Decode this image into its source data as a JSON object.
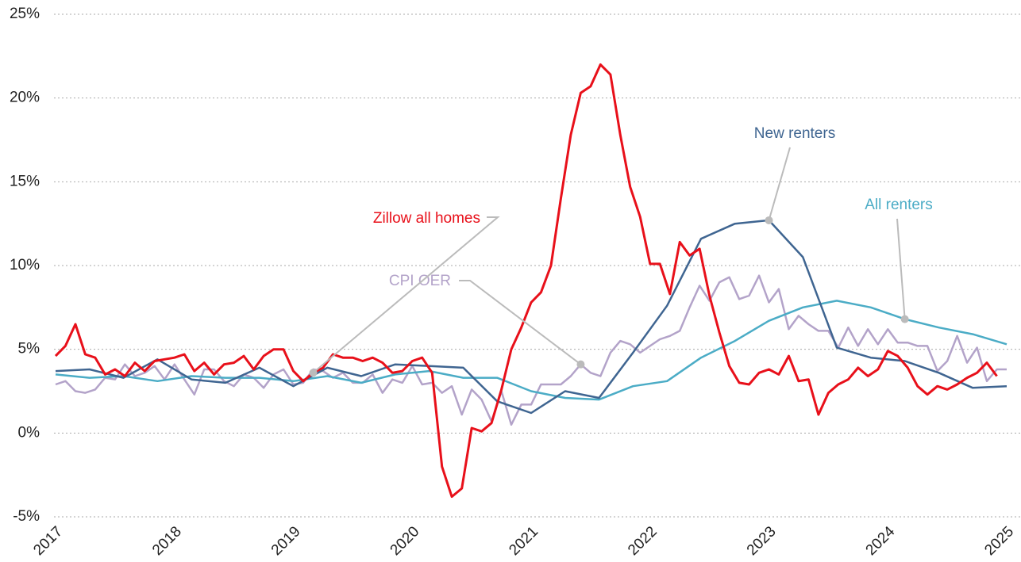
{
  "chart_data": {
    "type": "line",
    "ylim": [
      -5,
      25
    ],
    "yticks": [
      {
        "value": -5,
        "label": "-5%"
      },
      {
        "value": 0,
        "label": "0%"
      },
      {
        "value": 5,
        "label": "5%"
      },
      {
        "value": 10,
        "label": "10%"
      },
      {
        "value": 15,
        "label": "15%"
      },
      {
        "value": 20,
        "label": "20%"
      },
      {
        "value": 25,
        "label": "25%"
      }
    ],
    "xlim": [
      2017,
      2025
    ],
    "xticks": [
      2017,
      2018,
      2019,
      2020,
      2021,
      2022,
      2023,
      2024,
      2025
    ],
    "grid": true,
    "series": [
      {
        "name": "CPI OER",
        "color": "#b3a3c9",
        "x": [
          2017.0,
          2017.083,
          2017.167,
          2017.25,
          2017.333,
          2017.417,
          2017.5,
          2017.583,
          2017.667,
          2017.75,
          2017.833,
          2017.917,
          2018.0,
          2018.083,
          2018.167,
          2018.25,
          2018.333,
          2018.417,
          2018.5,
          2018.583,
          2018.667,
          2018.75,
          2018.833,
          2018.917,
          2019.0,
          2019.083,
          2019.167,
          2019.25,
          2019.333,
          2019.417,
          2019.5,
          2019.583,
          2019.667,
          2019.75,
          2019.833,
          2019.917,
          2020.0,
          2020.083,
          2020.167,
          2020.25,
          2020.333,
          2020.417,
          2020.5,
          2020.583,
          2020.667,
          2020.75,
          2020.833,
          2020.917,
          2021.0,
          2021.083,
          2021.167,
          2021.25,
          2021.333,
          2021.417,
          2021.5,
          2021.583,
          2021.667,
          2021.75,
          2021.833,
          2021.917,
          2022.0,
          2022.083,
          2022.167,
          2022.25,
          2022.333,
          2022.417,
          2022.5,
          2022.583,
          2022.667,
          2022.75,
          2022.833,
          2022.917,
          2023.0,
          2023.083,
          2023.167,
          2023.25,
          2023.333,
          2023.417,
          2023.5,
          2023.583,
          2023.667,
          2023.75,
          2023.833,
          2023.917,
          2024.0,
          2024.083,
          2024.167,
          2024.25,
          2024.333,
          2024.417,
          2024.5,
          2024.583,
          2024.667,
          2024.75,
          2024.833,
          2024.917,
          2025.0
        ],
        "values": [
          2.9,
          3.1,
          2.5,
          2.4,
          2.6,
          3.3,
          3.2,
          4.1,
          3.4,
          3.6,
          4.0,
          3.2,
          4.1,
          3.2,
          2.3,
          3.8,
          3.8,
          3.1,
          2.8,
          3.5,
          3.3,
          2.7,
          3.5,
          3.8,
          2.9,
          3.0,
          3.8,
          3.7,
          3.3,
          3.6,
          3.0,
          3.0,
          3.5,
          2.4,
          3.2,
          3.0,
          4.0,
          2.9,
          3.0,
          2.4,
          2.8,
          1.1,
          2.6,
          2.0,
          0.7,
          2.5,
          0.5,
          1.7,
          1.7,
          2.9,
          2.9,
          2.9,
          3.4,
          4.1,
          3.6,
          3.4,
          4.8,
          5.5,
          5.3,
          4.8,
          5.2,
          5.6,
          5.8,
          6.1,
          7.5,
          8.8,
          7.9,
          9.0,
          9.3,
          8.0,
          8.2,
          9.4,
          7.8,
          8.6,
          6.2,
          7.0,
          6.5,
          6.1,
          6.1,
          5.1,
          6.3,
          5.2,
          6.2,
          5.3,
          6.2,
          5.4,
          5.4,
          5.2,
          5.2,
          3.7,
          4.3,
          5.8,
          4.2,
          5.1,
          3.1,
          3.8,
          3.8
        ]
      },
      {
        "name": "All renters",
        "color": "#4bacc6",
        "x": [
          2017.0,
          2017.286,
          2017.571,
          2017.857,
          2018.143,
          2018.429,
          2018.714,
          2019.0,
          2019.286,
          2019.571,
          2019.857,
          2020.143,
          2020.429,
          2020.714,
          2021.0,
          2021.286,
          2021.571,
          2021.857,
          2022.143,
          2022.429,
          2022.714,
          2023.0,
          2023.286,
          2023.571,
          2023.857,
          2024.143,
          2024.429,
          2024.714,
          2025.0
        ],
        "values": [
          3.5,
          3.3,
          3.4,
          3.1,
          3.4,
          3.3,
          3.3,
          3.1,
          3.4,
          3.0,
          3.5,
          3.7,
          3.3,
          3.3,
          2.5,
          2.1,
          2.0,
          2.8,
          3.1,
          4.5,
          5.5,
          6.7,
          7.5,
          7.9,
          7.5,
          6.8,
          6.3,
          5.9,
          5.3
        ]
      },
      {
        "name": "New renters",
        "color": "#3f6591",
        "x": [
          2017.0,
          2017.286,
          2017.571,
          2017.857,
          2018.143,
          2018.429,
          2018.714,
          2019.0,
          2019.286,
          2019.571,
          2019.857,
          2020.143,
          2020.429,
          2020.714,
          2021.0,
          2021.286,
          2021.571,
          2021.857,
          2022.143,
          2022.429,
          2022.714,
          2023.0,
          2023.286,
          2023.571,
          2023.857,
          2024.143,
          2024.429,
          2024.714,
          2025.0
        ],
        "values": [
          3.7,
          3.8,
          3.3,
          4.4,
          3.2,
          3.0,
          3.9,
          2.8,
          3.9,
          3.4,
          4.1,
          4.0,
          3.9,
          1.9,
          1.2,
          2.5,
          2.1,
          4.8,
          7.6,
          11.6,
          12.5,
          12.7,
          10.5,
          5.1,
          4.5,
          4.3,
          3.6,
          2.7,
          2.8
        ]
      },
      {
        "name": "Zillow all homes",
        "color": "#e8101a",
        "x": [
          2017.0,
          2017.083,
          2017.167,
          2017.25,
          2017.333,
          2017.417,
          2017.5,
          2017.583,
          2017.667,
          2017.75,
          2017.833,
          2017.917,
          2018.0,
          2018.083,
          2018.167,
          2018.25,
          2018.333,
          2018.417,
          2018.5,
          2018.583,
          2018.667,
          2018.75,
          2018.833,
          2018.917,
          2019.0,
          2019.083,
          2019.167,
          2019.25,
          2019.333,
          2019.417,
          2019.5,
          2019.583,
          2019.667,
          2019.75,
          2019.833,
          2019.917,
          2020.0,
          2020.083,
          2020.167,
          2020.25,
          2020.333,
          2020.417,
          2020.5,
          2020.583,
          2020.667,
          2020.75,
          2020.833,
          2020.917,
          2021.0,
          2021.083,
          2021.167,
          2021.25,
          2021.333,
          2021.417,
          2021.5,
          2021.583,
          2021.667,
          2021.75,
          2021.833,
          2021.917,
          2022.0,
          2022.083,
          2022.167,
          2022.25,
          2022.333,
          2022.417,
          2022.5,
          2022.583,
          2022.667,
          2022.75,
          2022.833,
          2022.917,
          2023.0,
          2023.083,
          2023.167,
          2023.25,
          2023.333,
          2023.417,
          2023.5,
          2023.583,
          2023.667,
          2023.75,
          2023.833,
          2023.917,
          2024.0,
          2024.083,
          2024.167,
          2024.25,
          2024.333,
          2024.417,
          2024.5,
          2024.583,
          2024.667,
          2024.75,
          2024.833,
          2024.917
        ],
        "values": [
          4.6,
          5.2,
          6.5,
          4.7,
          4.5,
          3.5,
          3.8,
          3.4,
          4.2,
          3.7,
          4.3,
          4.4,
          4.5,
          4.7,
          3.7,
          4.2,
          3.5,
          4.1,
          4.2,
          4.6,
          3.8,
          4.6,
          5.0,
          5.0,
          3.7,
          3.1,
          3.6,
          3.9,
          4.7,
          4.5,
          4.5,
          4.3,
          4.5,
          4.2,
          3.6,
          3.7,
          4.3,
          4.5,
          3.6,
          -2.0,
          -3.8,
          -3.3,
          0.3,
          0.1,
          0.6,
          2.6,
          5.0,
          6.3,
          7.8,
          8.4,
          10.0,
          14.0,
          17.8,
          20.3,
          20.7,
          22.0,
          21.4,
          17.8,
          14.7,
          12.9,
          10.1,
          10.1,
          8.3,
          11.4,
          10.6,
          11.0,
          8.2,
          6.0,
          4.0,
          3.0,
          2.9,
          3.6,
          3.8,
          3.5,
          4.6,
          3.1,
          3.2,
          1.1,
          2.4,
          2.9,
          3.2,
          3.9,
          3.4,
          3.8,
          4.9,
          4.6,
          3.9,
          2.8,
          2.3,
          2.8,
          2.6,
          2.9,
          3.3,
          3.6,
          4.2,
          3.4
        ]
      }
    ]
  }
}
